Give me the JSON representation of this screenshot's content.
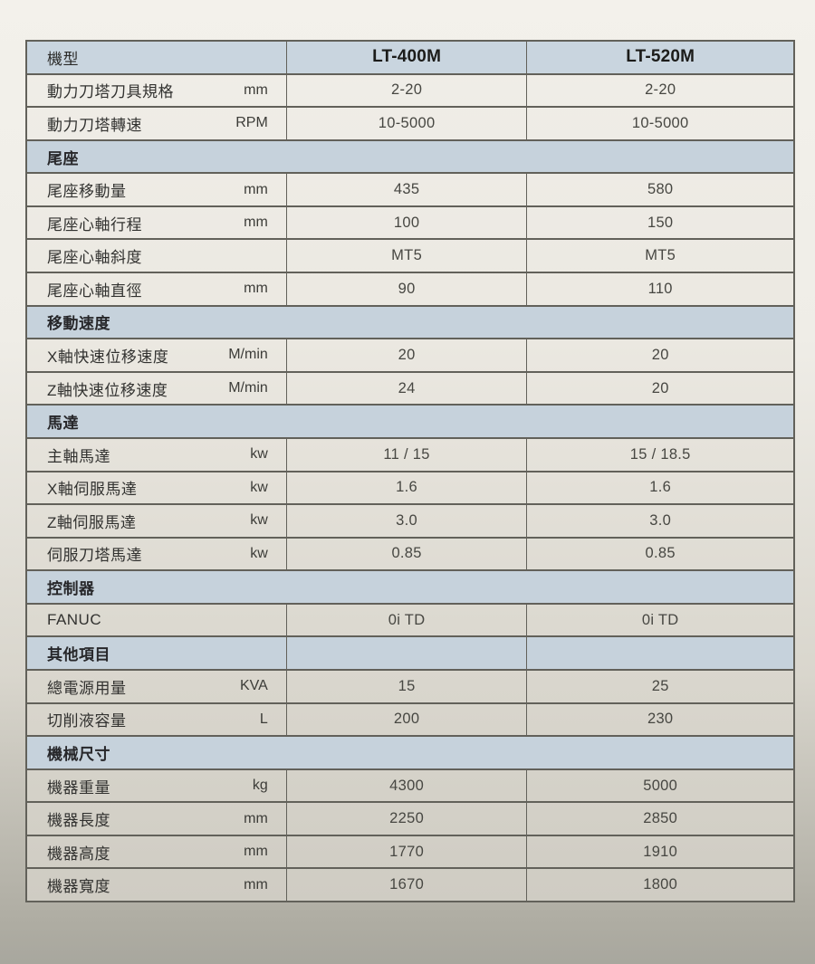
{
  "table": {
    "header": {
      "col1": "機型",
      "col2": "LT-400M",
      "col3": "LT-520M"
    },
    "rows": [
      {
        "type": "data",
        "label": "動力刀塔刀具規格",
        "unit": "mm",
        "v1": "2-20",
        "v2": "2-20"
      },
      {
        "type": "data",
        "label": "動力刀塔轉速",
        "unit": "RPM",
        "v1": "10-5000",
        "v2": "10-5000"
      },
      {
        "type": "section",
        "label": "尾座"
      },
      {
        "type": "data",
        "label": "尾座移動量",
        "unit": "mm",
        "v1": "435",
        "v2": "580"
      },
      {
        "type": "data",
        "label": "尾座心軸行程",
        "unit": "mm",
        "v1": "100",
        "v2": "150"
      },
      {
        "type": "data",
        "label": "尾座心軸斜度",
        "unit": "",
        "v1": "MT5",
        "v2": "MT5"
      },
      {
        "type": "data",
        "label": "尾座心軸直徑",
        "unit": "mm",
        "v1": "90",
        "v2": "110"
      },
      {
        "type": "section",
        "label": "移動速度"
      },
      {
        "type": "data",
        "label": "X軸快速位移速度",
        "unit": "M/min",
        "v1": "20",
        "v2": "20"
      },
      {
        "type": "data",
        "label": "Z軸快速位移速度",
        "unit": "M/min",
        "v1": "24",
        "v2": "20"
      },
      {
        "type": "section",
        "label": "馬達"
      },
      {
        "type": "data",
        "label": "主軸馬達",
        "unit": "kw",
        "v1": "11 / 15",
        "v2": "15 / 18.5"
      },
      {
        "type": "data",
        "label": "X軸伺服馬達",
        "unit": "kw",
        "v1": "1.6",
        "v2": "1.6"
      },
      {
        "type": "data",
        "label": "Z軸伺服馬達",
        "unit": "kw",
        "v1": "3.0",
        "v2": "3.0"
      },
      {
        "type": "data",
        "label": "伺服刀塔馬達",
        "unit": "kw",
        "v1": "0.85",
        "v2": "0.85"
      },
      {
        "type": "section",
        "label": "控制器"
      },
      {
        "type": "data",
        "label": "FANUC",
        "unit": "",
        "v1": "0i TD",
        "v2": "0i TD"
      },
      {
        "type": "section-cells",
        "label": "其他項目",
        "v1": "",
        "v2": ""
      },
      {
        "type": "data",
        "label": "總電源用量",
        "unit": "KVA",
        "v1": "15",
        "v2": "25"
      },
      {
        "type": "data",
        "label": "切削液容量",
        "unit": "L",
        "v1": "200",
        "v2": "230"
      },
      {
        "type": "section",
        "label": "機械尺寸"
      },
      {
        "type": "data",
        "label": "機器重量",
        "unit": "kg",
        "v1": "4300",
        "v2": "5000"
      },
      {
        "type": "data",
        "label": "機器長度",
        "unit": "mm",
        "v1": "2250",
        "v2": "2850"
      },
      {
        "type": "data",
        "label": "機器高度",
        "unit": "mm",
        "v1": "1770",
        "v2": "1910"
      },
      {
        "type": "data",
        "label": "機器寬度",
        "unit": "mm",
        "v1": "1670",
        "v2": "1800"
      }
    ],
    "colors": {
      "header_bg": "#c9d5df",
      "section_bg": "#c6d2dc",
      "border": "#62615a"
    }
  }
}
